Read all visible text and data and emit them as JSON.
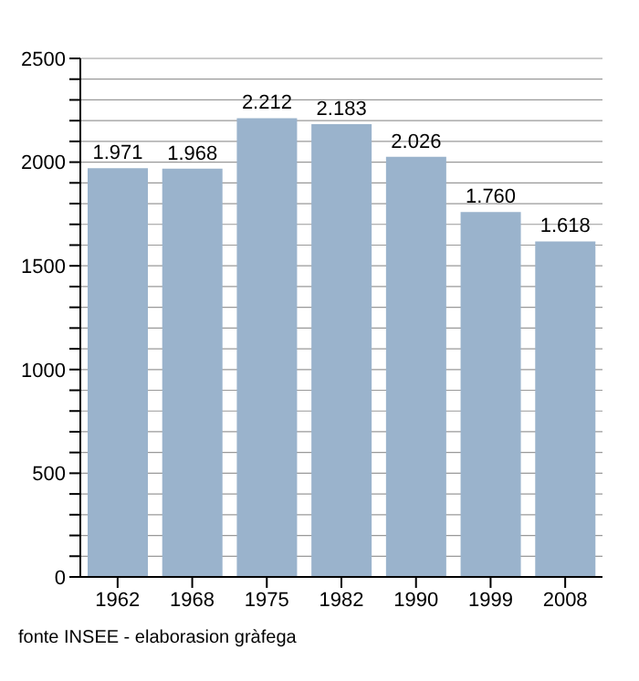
{
  "chart_data": {
    "type": "bar",
    "categories": [
      "1962",
      "1968",
      "1975",
      "1982",
      "1990",
      "1999",
      "2008"
    ],
    "values": [
      1971,
      1968,
      2212,
      2183,
      2026,
      1760,
      1618
    ],
    "value_labels": [
      "1.971",
      "1.968",
      "2.212",
      "2.183",
      "2.026",
      "1.760",
      "1.618"
    ],
    "color": "#9ab3cc",
    "ylim": [
      0,
      2500
    ],
    "yticks": [
      0,
      {
        "value": 100,
        "label": null
      },
      {
        "value": 200,
        "label": null
      },
      {
        "value": 300,
        "label": null
      },
      {
        "value": 400,
        "label": null
      },
      500,
      {
        "value": 600,
        "label": null
      },
      {
        "value": 700,
        "label": null
      },
      {
        "value": 800,
        "label": null
      },
      {
        "value": 900,
        "label": null
      },
      1000,
      {
        "value": 1100,
        "label": null
      },
      {
        "value": 1200,
        "label": null
      },
      {
        "value": 1300,
        "label": null
      },
      {
        "value": 1400,
        "label": null
      },
      1500,
      {
        "value": 1600,
        "label": null
      },
      {
        "value": 1700,
        "label": null
      },
      {
        "value": 1800,
        "label": null
      },
      {
        "value": 1900,
        "label": null
      },
      2000,
      {
        "value": 2100,
        "label": null
      },
      {
        "value": 2200,
        "label": null
      },
      {
        "value": 2300,
        "label": null
      },
      {
        "value": 2400,
        "label": null
      },
      2500
    ],
    "grid": "y",
    "annotations": [
      "fonte INSEE - elaborasion gràfega"
    ]
  }
}
